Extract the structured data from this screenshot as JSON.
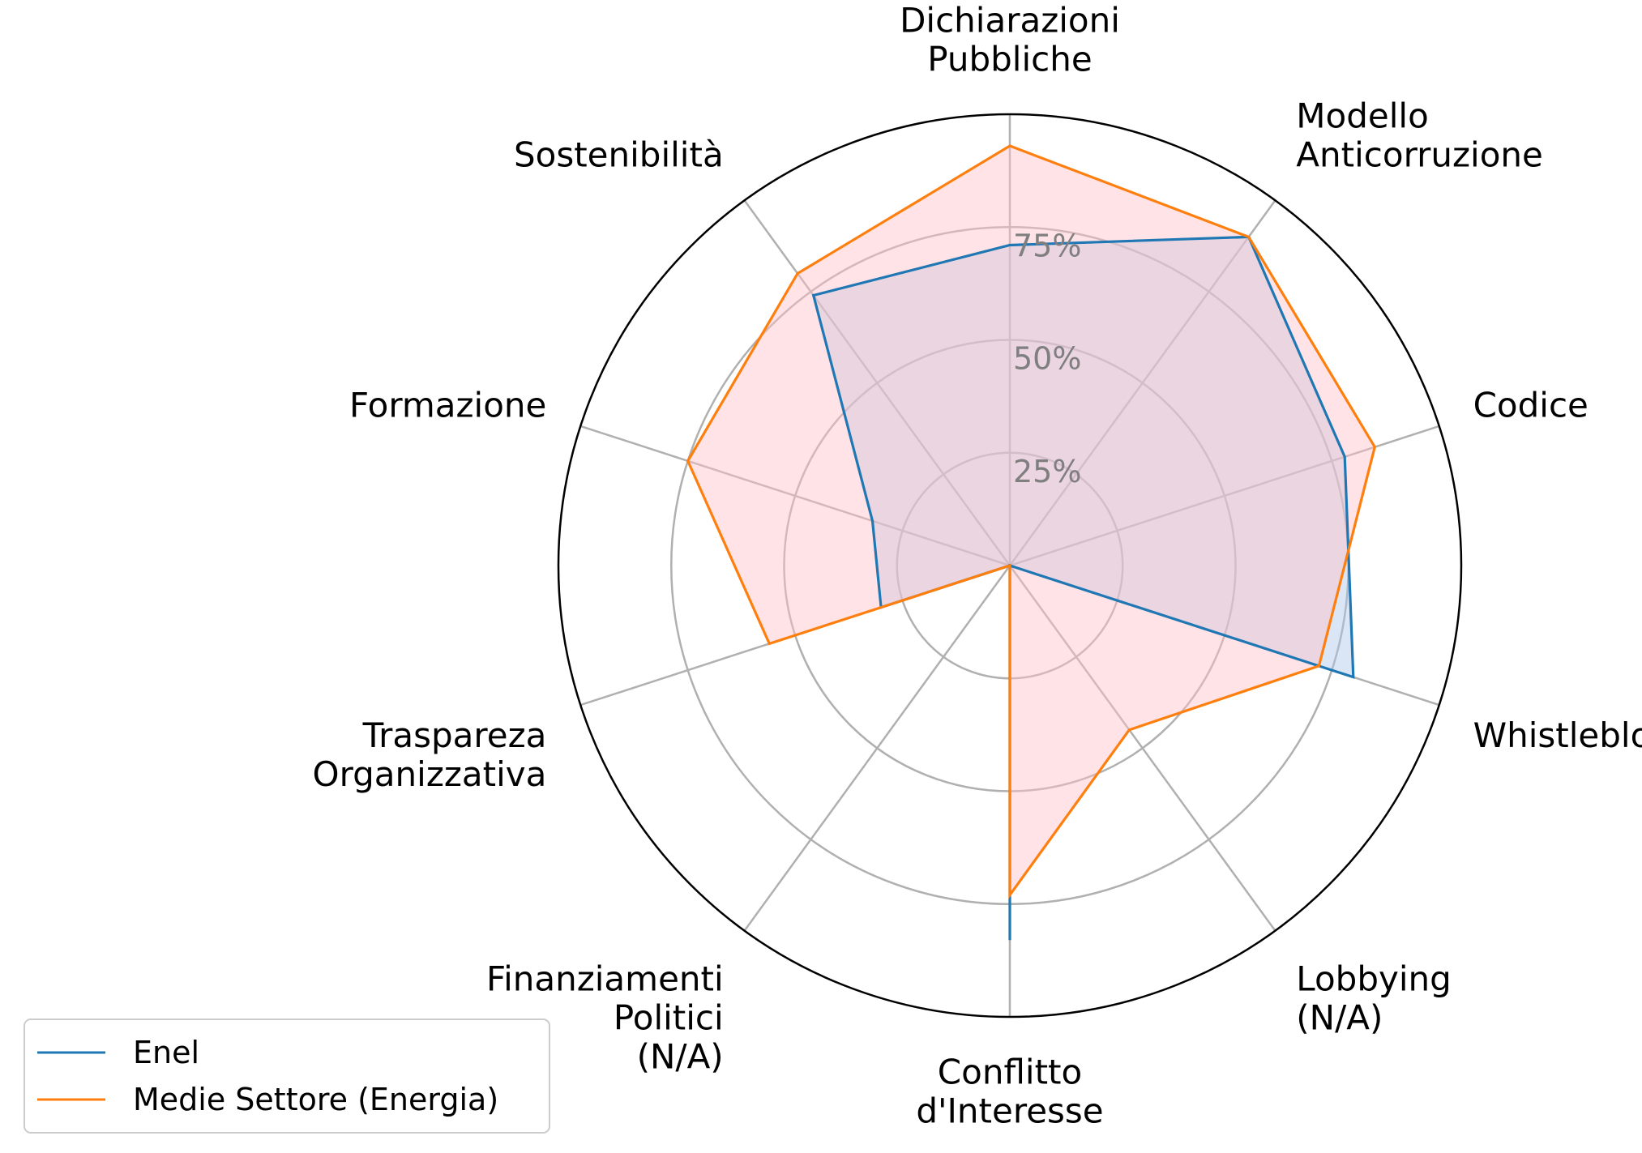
{
  "chart_data": {
    "type": "radar",
    "axes": [
      "Dichiarazioni\nPubbliche",
      "Modello\nAnticorruzione",
      "Codice",
      "Whistleblowing",
      "Lobbying\n(N/A)",
      "Conflitto\nd'Interesse",
      "Finanziamenti\nPolitici\n(N/A)",
      "Traspareza\nOrganizzativa",
      "Formazione",
      "Sostenibilità"
    ],
    "series": [
      {
        "name": "Enel",
        "values": [
          71,
          90,
          78,
          80,
          0,
          83,
          0,
          30,
          32,
          74
        ],
        "color": "#1f77b4",
        "fill": "#aec7e8"
      },
      {
        "name": "Medie Settore (Energia)",
        "values": [
          93,
          90,
          85,
          72,
          45,
          73,
          0,
          56,
          75,
          80
        ],
        "color": "#ff7f0e",
        "fill": "#ffc0c8"
      }
    ],
    "rlim": [
      0,
      100
    ],
    "r_ticks": [
      25,
      50,
      75
    ],
    "r_tick_labels": [
      "25%",
      "50%",
      "75%"
    ],
    "gridlines": true,
    "legend_position": "bottom-left"
  }
}
